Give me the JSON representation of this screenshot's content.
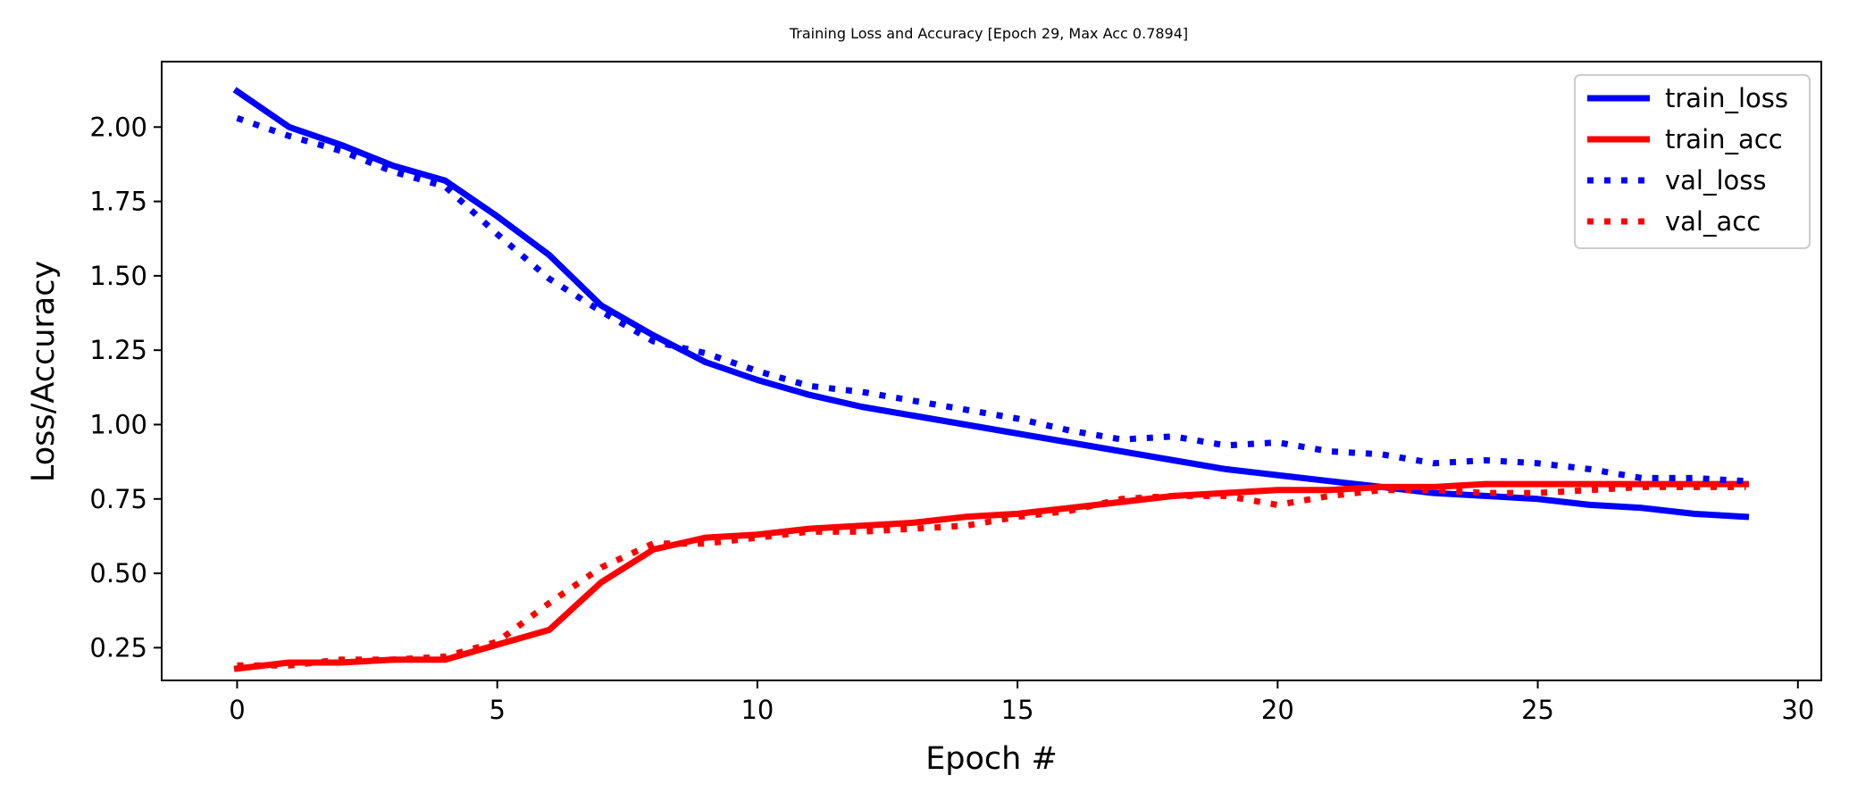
{
  "chart_data": {
    "type": "line",
    "title": "Training Loss and Accuracy [Epoch 29, Max Acc 0.7894]",
    "xlabel": "Epoch #",
    "ylabel": "Loss/Accuracy",
    "xlim": [
      -1.45,
      30.45
    ],
    "ylim": [
      0.14,
      2.22
    ],
    "x_ticks": [
      0,
      5,
      10,
      15,
      20,
      25,
      30
    ],
    "x_tick_labels": [
      "0",
      "5",
      "10",
      "15",
      "20",
      "25",
      "30"
    ],
    "y_ticks": [
      0.25,
      0.5,
      0.75,
      1.0,
      1.25,
      1.5,
      1.75,
      2.0
    ],
    "y_tick_labels": [
      "0.25",
      "0.50",
      "0.75",
      "1.00",
      "1.25",
      "1.50",
      "1.75",
      "2.00"
    ],
    "grid": false,
    "legend_position": "top-right",
    "x": [
      0,
      1,
      2,
      3,
      4,
      5,
      6,
      7,
      8,
      9,
      10,
      11,
      12,
      13,
      14,
      15,
      16,
      17,
      18,
      19,
      20,
      21,
      22,
      23,
      24,
      25,
      26,
      27,
      28,
      29
    ],
    "series": [
      {
        "name": "train_loss",
        "color": "#0000ff",
        "style": "solid",
        "values": [
          2.12,
          2.0,
          1.94,
          1.87,
          1.82,
          1.7,
          1.57,
          1.4,
          1.3,
          1.21,
          1.15,
          1.1,
          1.06,
          1.03,
          1.0,
          0.97,
          0.94,
          0.91,
          0.88,
          0.85,
          0.83,
          0.81,
          0.79,
          0.77,
          0.76,
          0.75,
          0.73,
          0.72,
          0.7,
          0.69
        ]
      },
      {
        "name": "train_acc",
        "color": "#ff0000",
        "style": "solid",
        "values": [
          0.18,
          0.2,
          0.2,
          0.21,
          0.21,
          0.26,
          0.31,
          0.47,
          0.58,
          0.62,
          0.63,
          0.65,
          0.66,
          0.67,
          0.69,
          0.7,
          0.72,
          0.74,
          0.76,
          0.77,
          0.78,
          0.78,
          0.79,
          0.79,
          0.8,
          0.8,
          0.8,
          0.8,
          0.8,
          0.8
        ]
      },
      {
        "name": "val_loss",
        "color": "#0000ff",
        "style": "dotted",
        "values": [
          2.03,
          1.97,
          1.92,
          1.85,
          1.8,
          1.64,
          1.49,
          1.38,
          1.28,
          1.24,
          1.18,
          1.13,
          1.11,
          1.08,
          1.05,
          1.02,
          0.98,
          0.95,
          0.96,
          0.93,
          0.94,
          0.91,
          0.9,
          0.87,
          0.88,
          0.87,
          0.85,
          0.82,
          0.82,
          0.81
        ]
      },
      {
        "name": "val_acc",
        "color": "#ff0000",
        "style": "dotted",
        "values": [
          0.19,
          0.19,
          0.21,
          0.21,
          0.22,
          0.27,
          0.4,
          0.52,
          0.6,
          0.6,
          0.62,
          0.64,
          0.64,
          0.65,
          0.66,
          0.69,
          0.71,
          0.75,
          0.76,
          0.76,
          0.73,
          0.76,
          0.78,
          0.78,
          0.77,
          0.77,
          0.78,
          0.79,
          0.79,
          0.79
        ]
      }
    ]
  }
}
